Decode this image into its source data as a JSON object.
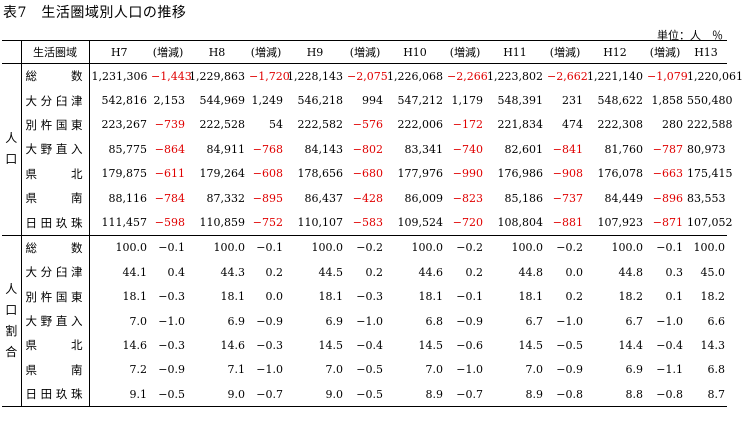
{
  "title": "表7　生活圏域別人口の推移",
  "units": "単位：人　％",
  "header": {
    "region_label": "生活圏域",
    "columns": [
      "H7",
      "(増減)",
      "H8",
      "(増減)",
      "H9",
      "(増減)",
      "H10",
      "(増減)",
      "H11",
      "(増減)",
      "H12",
      "(増減)",
      "H13"
    ]
  },
  "sections": [
    {
      "label": "人口",
      "rows": [
        {
          "name": "総数",
          "cells": [
            "1,231,306",
            "−1,443",
            "1,229,863",
            "−1,720",
            "1,228,143",
            "−2,075",
            "1,226,068",
            "−2,266",
            "1,223,802",
            "−2,662",
            "1,221,140",
            "−1,079",
            "1,220,061"
          ]
        },
        {
          "name": "大分臼津",
          "cells": [
            "542,816",
            "2,153",
            "544,969",
            "1,249",
            "546,218",
            "994",
            "547,212",
            "1,179",
            "548,391",
            "231",
            "548,622",
            "1,858",
            "550,480"
          ]
        },
        {
          "name": "別杵国東",
          "cells": [
            "223,267",
            "−739",
            "222,528",
            "54",
            "222,582",
            "−576",
            "222,006",
            "−172",
            "221,834",
            "474",
            "222,308",
            "280",
            "222,588"
          ]
        },
        {
          "name": "大野直入",
          "cells": [
            "85,775",
            "−864",
            "84,911",
            "−768",
            "84,143",
            "−802",
            "83,341",
            "−740",
            "82,601",
            "−841",
            "81,760",
            "−787",
            "80,973"
          ]
        },
        {
          "name": "県北",
          "cells": [
            "179,875",
            "−611",
            "179,264",
            "−608",
            "178,656",
            "−680",
            "177,976",
            "−990",
            "176,986",
            "−908",
            "176,078",
            "−663",
            "175,415"
          ]
        },
        {
          "name": "県南",
          "cells": [
            "88,116",
            "−784",
            "87,332",
            "−895",
            "86,437",
            "−428",
            "86,009",
            "−823",
            "85,186",
            "−737",
            "84,449",
            "−896",
            "83,553"
          ]
        },
        {
          "name": "日田玖珠",
          "cells": [
            "111,457",
            "−598",
            "110,859",
            "−752",
            "110,107",
            "−583",
            "109,524",
            "−720",
            "108,804",
            "−881",
            "107,923",
            "−871",
            "107,052"
          ]
        }
      ]
    },
    {
      "label": "人口割合",
      "rows": [
        {
          "name": "総数",
          "cells": [
            "100.0",
            "−0.1",
            "100.0",
            "−0.1",
            "100.0",
            "−0.2",
            "100.0",
            "−0.2",
            "100.0",
            "−0.2",
            "100.0",
            "−0.1",
            "100.0"
          ]
        },
        {
          "name": "大分臼津",
          "cells": [
            "44.1",
            "0.4",
            "44.3",
            "0.2",
            "44.5",
            "0.2",
            "44.6",
            "0.2",
            "44.8",
            "0.0",
            "44.8",
            "0.3",
            "45.0"
          ]
        },
        {
          "name": "別杵国東",
          "cells": [
            "18.1",
            "−0.3",
            "18.1",
            "0.0",
            "18.1",
            "−0.3",
            "18.1",
            "−0.1",
            "18.1",
            "0.2",
            "18.2",
            "0.1",
            "18.2"
          ]
        },
        {
          "name": "大野直入",
          "cells": [
            "7.0",
            "−1.0",
            "6.9",
            "−0.9",
            "6.9",
            "−1.0",
            "6.8",
            "−0.9",
            "6.7",
            "−1.0",
            "6.7",
            "−1.0",
            "6.6"
          ]
        },
        {
          "name": "県北",
          "cells": [
            "14.6",
            "−0.3",
            "14.6",
            "−0.3",
            "14.5",
            "−0.4",
            "14.5",
            "−0.6",
            "14.5",
            "−0.5",
            "14.4",
            "−0.4",
            "14.3"
          ]
        },
        {
          "name": "県南",
          "cells": [
            "7.2",
            "−0.9",
            "7.1",
            "−1.0",
            "7.0",
            "−0.5",
            "7.0",
            "−1.0",
            "7.0",
            "−0.9",
            "6.9",
            "−1.1",
            "6.8"
          ]
        },
        {
          "name": "日田玖珠",
          "cells": [
            "9.1",
            "−0.5",
            "9.0",
            "−0.7",
            "9.0",
            "−0.5",
            "8.9",
            "−0.7",
            "8.9",
            "−0.8",
            "8.8",
            "−0.8",
            "8.7"
          ]
        }
      ]
    }
  ],
  "negative_color": "#e00000"
}
